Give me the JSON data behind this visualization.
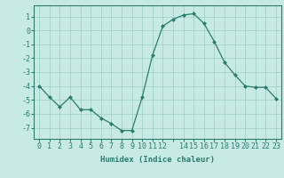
{
  "x": [
    0,
    1,
    2,
    3,
    4,
    5,
    6,
    7,
    8,
    9,
    10,
    11,
    12,
    13,
    14,
    15,
    16,
    17,
    18,
    19,
    20,
    21,
    22,
    23
  ],
  "y": [
    -4.0,
    -4.8,
    -5.5,
    -4.8,
    -5.7,
    -5.7,
    -6.3,
    -6.7,
    -7.2,
    -7.2,
    -4.8,
    -1.8,
    0.3,
    0.8,
    1.1,
    1.2,
    0.5,
    -0.8,
    -2.3,
    -3.2,
    -4.0,
    -4.1,
    -4.1,
    -4.9
  ],
  "line_color": "#2a7d6e",
  "marker": "D",
  "markersize": 2.0,
  "linewidth": 0.9,
  "bg_color": "#c8eae4",
  "grid_color": "#9ecfc4",
  "xlabel": "Humidex (Indice chaleur)",
  "xlabel_fontsize": 6.5,
  "tick_fontsize": 6.0,
  "ylim": [
    -7.8,
    1.8
  ],
  "xlim": [
    -0.5,
    23.5
  ],
  "yticks": [
    1,
    0,
    -1,
    -2,
    -3,
    -4,
    -5,
    -6,
    -7
  ],
  "xtick_labels": [
    "0",
    "1",
    "2",
    "3",
    "4",
    "5",
    "6",
    "7",
    "8",
    "9",
    "10",
    "11",
    "12",
    "",
    "14",
    "15",
    "16",
    "17",
    "18",
    "19",
    "20",
    "21",
    "22",
    "23"
  ]
}
